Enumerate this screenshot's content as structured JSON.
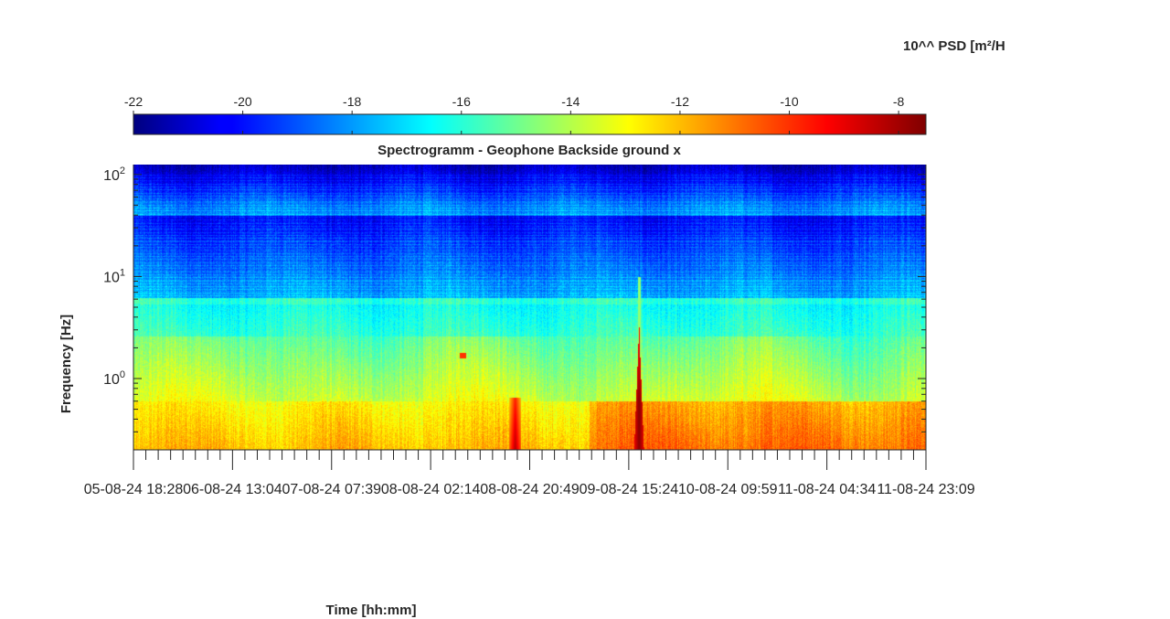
{
  "chart_data": {
    "type": "heatmap",
    "title": "Spectrogramm - Geophone Backside ground x",
    "xlabel": "Time [hh:mm]",
    "ylabel": "Frequency [Hz]",
    "colorbar_label": "10^^ PSD [m²/H",
    "colorbar_position": "top",
    "colormap": "jet",
    "clim": [
      -22,
      -7.5
    ],
    "colorbar_ticks": [
      "-22",
      "-20",
      "-18",
      "-16",
      "-14",
      "-12",
      "-10",
      "-8"
    ],
    "colorbar_tick_values": [
      -22,
      -20,
      -18,
      -16,
      -14,
      -12,
      -10,
      -8
    ],
    "y_scale": "log",
    "ylim": [
      0.2,
      125
    ],
    "y_ticks": [
      {
        "value": 100,
        "base": "10",
        "exp": "2"
      },
      {
        "value": 10,
        "base": "10",
        "exp": "1"
      },
      {
        "value": 1,
        "base": "10",
        "exp": "0"
      }
    ],
    "x_ticks": [
      "05-08-24  18:28",
      "06-08-24  13:04",
      "07-08-24  07:39",
      "08-08-24  02:14",
      "08-08-24  20:49",
      "09-08-24  15:24",
      "10-08-24  09:59",
      "11-08-24  04:34",
      "11-08-24  23:09"
    ],
    "events": [
      {
        "time": "08-08-24 14:00",
        "freq_max": 0.6,
        "level": -9
      },
      {
        "time": "09-08-24 15:05",
        "freq_max": 3,
        "level": -7.6
      },
      {
        "time": "08-08-24 08:00",
        "freq": 1.7,
        "level": -10
      }
    ]
  }
}
